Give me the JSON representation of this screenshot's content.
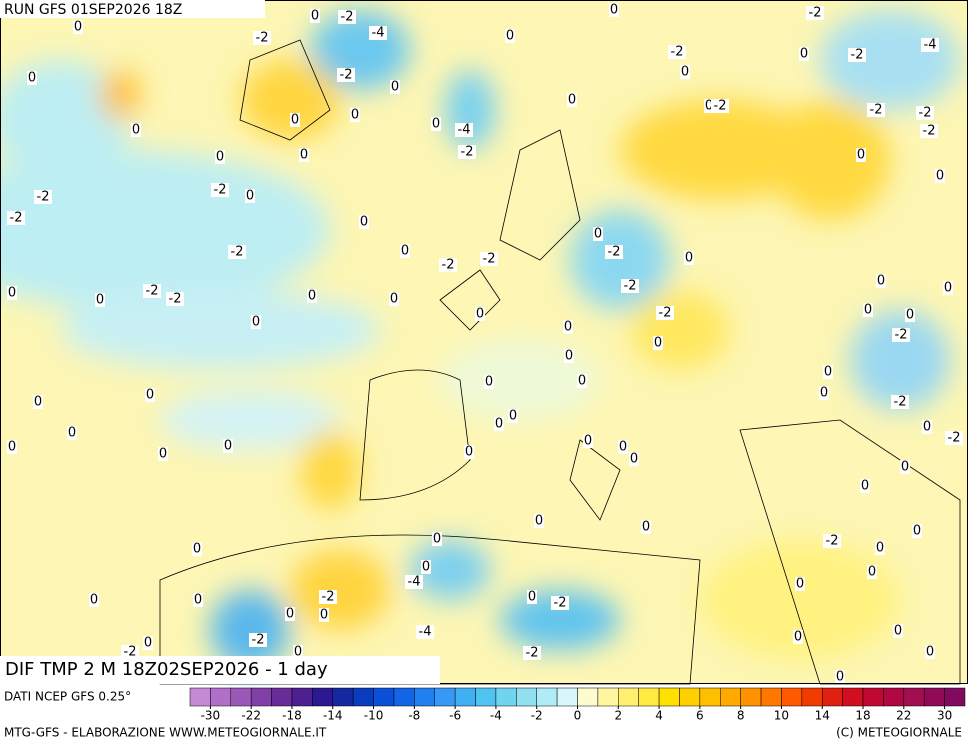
{
  "header": {
    "run": "RUN GFS 01SEP2026 18Z",
    "title": "DIF TMP 2 M 18Z02SEP2026 - 1 day"
  },
  "legend": {
    "source": "DATI NCEP GFS 0.25°",
    "ticks": [
      -30,
      -22,
      -18,
      -14,
      -10,
      -8,
      -6,
      -4,
      -2,
      0,
      2,
      4,
      6,
      8,
      10,
      14,
      18,
      22,
      30
    ],
    "colors": [
      "#c58ad6",
      "#b070c8",
      "#9a58b8",
      "#8040a8",
      "#6a2c98",
      "#4c2090",
      "#2c1890",
      "#1428a0",
      "#0a3cc0",
      "#0a50d8",
      "#1464e6",
      "#2080f0",
      "#3898f5",
      "#40b0f5",
      "#50c4f0",
      "#70d4f0",
      "#90e0f0",
      "#b0ecf5",
      "#d8f7fa",
      "#fffbd0",
      "#fff6a0",
      "#fff070",
      "#ffea40",
      "#ffe000",
      "#ffd000",
      "#ffbf00",
      "#ffaa00",
      "#ff9200",
      "#ff7800",
      "#ff5a00",
      "#f03c00",
      "#e02010",
      "#d01020",
      "#c00830",
      "#b00840",
      "#a01050",
      "#900a58",
      "#800a60"
    ]
  },
  "footer": {
    "left": "MTG-GFS - ELABORAZIONE WWW.METEOGIORNALE.IT",
    "right": "(C) METEOGIORNALE"
  },
  "contour_labels": [
    0,
    -2,
    -4,
    -2,
    0,
    0,
    0,
    -2,
    0,
    0,
    0,
    0,
    0,
    0,
    -4,
    -2,
    0,
    0,
    0,
    -2,
    0,
    0,
    -2,
    -2,
    0,
    -2,
    -4,
    -2,
    -2,
    -2,
    0,
    0,
    -2,
    -2,
    0,
    -2,
    0,
    -2,
    0,
    -2,
    -2,
    0,
    -2,
    0,
    -2,
    0,
    0,
    -2,
    -2,
    0,
    0,
    0,
    0,
    0,
    -2,
    0,
    0,
    0,
    0,
    0,
    0,
    -2,
    0,
    0,
    0,
    0,
    0,
    0,
    -2,
    0,
    0,
    0,
    0,
    0,
    0,
    0,
    0,
    0,
    0,
    0,
    -2,
    0,
    0,
    0,
    0,
    0,
    0,
    -2,
    0,
    0,
    0,
    -4,
    0,
    0,
    0,
    -2,
    0,
    0,
    -2,
    -2,
    -4,
    0,
    0,
    0,
    -2,
    0,
    -2,
    0,
    0,
    0,
    0,
    0
  ]
}
